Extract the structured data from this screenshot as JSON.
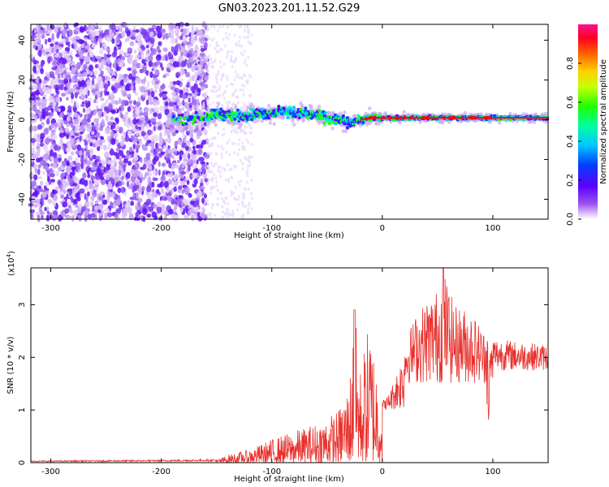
{
  "title": "GN03.2023.201.11.52.G29",
  "chart_data": [
    {
      "type": "heatmap",
      "xlabel": "Height of straight line (km)",
      "ylabel": "Frequency (Hz)",
      "xlim": [
        -318,
        150
      ],
      "ylim": [
        -50,
        48
      ],
      "xticks": [
        -300,
        -200,
        -100,
        0,
        100
      ],
      "yticks": [
        -40,
        -20,
        0,
        20,
        40
      ],
      "colorbar": {
        "label": "Normalized spectral amplitude",
        "range": [
          0,
          1
        ],
        "ticks": [
          "0.0",
          "0.2",
          "0.4",
          "0.6",
          "0.8"
        ],
        "tick_values": [
          0,
          0.2,
          0.4,
          0.6,
          0.8
        ]
      },
      "centerline": [
        [
          -190,
          0
        ],
        [
          -165,
          1
        ],
        [
          -150,
          3
        ],
        [
          -130,
          2
        ],
        [
          -110,
          3
        ],
        [
          -90,
          4
        ],
        [
          -70,
          3
        ],
        [
          -55,
          2
        ],
        [
          -45,
          0
        ],
        [
          -38,
          0
        ],
        [
          -30,
          -2
        ],
        [
          -20,
          0
        ],
        [
          -10,
          1
        ],
        [
          0,
          1
        ],
        [
          20,
          1
        ],
        [
          50,
          1
        ],
        [
          80,
          1
        ],
        [
          100,
          1
        ],
        [
          150,
          1
        ]
      ]
    },
    {
      "type": "line",
      "xlabel": "Height of straight line (km)",
      "ylabel": "SNR (10 * v/v)",
      "yscale_note": "(x10",
      "yscale_exp": "4",
      "yscale_close": ")",
      "xlim": [
        -318,
        150
      ],
      "ylim": [
        0,
        3.7
      ],
      "xticks": [
        -300,
        -200,
        -100,
        0,
        100
      ],
      "yticks": [
        0,
        1,
        2,
        3
      ],
      "color": "#e8302c",
      "envelope": [
        [
          -318,
          0.03
        ],
        [
          -200,
          0.04
        ],
        [
          -150,
          0.05
        ],
        [
          -140,
          0.15
        ],
        [
          -120,
          0.25
        ],
        [
          -100,
          0.45
        ],
        [
          -80,
          0.6
        ],
        [
          -60,
          0.75
        ],
        [
          -40,
          1.0
        ],
        [
          -30,
          1.5
        ],
        [
          -25,
          2.9
        ],
        [
          -20,
          1.8
        ],
        [
          -12,
          2.7
        ],
        [
          -5,
          1.9
        ],
        [
          0,
          1.2
        ],
        [
          5,
          1.3
        ],
        [
          10,
          1.6
        ],
        [
          20,
          2.3
        ],
        [
          30,
          2.8
        ],
        [
          40,
          3.1
        ],
        [
          50,
          3.3
        ],
        [
          55,
          3.7
        ],
        [
          65,
          3.0
        ],
        [
          80,
          2.9
        ],
        [
          95,
          2.4
        ],
        [
          100,
          2.2
        ],
        [
          120,
          2.15
        ],
        [
          150,
          2.1
        ]
      ]
    }
  ]
}
